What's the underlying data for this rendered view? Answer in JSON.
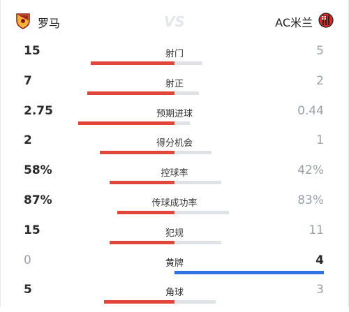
{
  "home_team": {
    "name": "罗马",
    "icon": "roma-crest-icon"
  },
  "away_team": {
    "name": "AC米兰",
    "icon": "ac-milan-crest-icon"
  },
  "vs_label": "VS",
  "colors": {
    "home": "#e2463b",
    "away": "#dfe2e7",
    "away_lead": "#2f72e6"
  },
  "stats": [
    {
      "label": "射门",
      "home": "15",
      "away": "5",
      "home_share": 0.75,
      "leader": "home"
    },
    {
      "label": "射正",
      "home": "7",
      "away": "2",
      "home_share": 0.78,
      "leader": "home"
    },
    {
      "label": "预期进球",
      "home": "2.75",
      "away": "0.44",
      "home_share": 0.86,
      "leader": "home"
    },
    {
      "label": "得分机会",
      "home": "2",
      "away": "1",
      "home_share": 0.67,
      "leader": "home"
    },
    {
      "label": "控球率",
      "home": "58%",
      "away": "42%",
      "home_share": 0.58,
      "leader": "home"
    },
    {
      "label": "传球成功率",
      "home": "87%",
      "away": "83%",
      "home_share": 0.51,
      "leader": "home"
    },
    {
      "label": "犯规",
      "home": "15",
      "away": "11",
      "home_share": 0.58,
      "leader": "home"
    },
    {
      "label": "黄牌",
      "home": "0",
      "away": "4",
      "home_share": 0.0,
      "leader": "away"
    },
    {
      "label": "角球",
      "home": "5",
      "away": "3",
      "home_share": 0.63,
      "leader": "home"
    }
  ]
}
